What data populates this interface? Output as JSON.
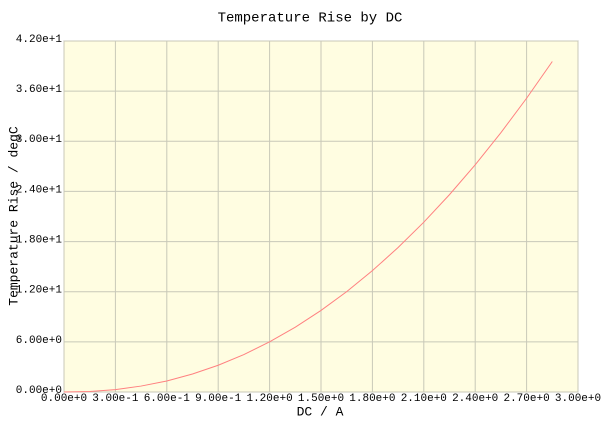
{
  "chart_data": {
    "type": "line",
    "title": "Temperature Rise by DC",
    "x_label": "DC / A",
    "y_label": "Temperature Rise / degC",
    "x": [
      0,
      0.15,
      0.3,
      0.45,
      0.6,
      0.75,
      0.9,
      1.05,
      1.2,
      1.35,
      1.5,
      1.65,
      1.8,
      1.95,
      2.1,
      2.25,
      2.4,
      2.55,
      2.7,
      2.85
    ],
    "series": [
      {
        "name": "Temperature Rise",
        "color": "#ff8080",
        "values": [
          0,
          0.06,
          0.29,
          0.71,
          1.32,
          2.15,
          3.2,
          4.48,
          6.0,
          7.76,
          9.76,
          12.01,
          14.52,
          17.29,
          20.32,
          23.62,
          27.19,
          31.03,
          35.15,
          39.55
        ]
      }
    ],
    "xlim": [
      0,
      3.0
    ],
    "ylim": [
      0,
      42
    ],
    "xticks": [
      {
        "value": 0,
        "label": "0.00e+0"
      },
      {
        "value": 0.3,
        "label": "3.00e-1"
      },
      {
        "value": 0.6,
        "label": "6.00e-1"
      },
      {
        "value": 0.9,
        "label": "9.00e-1"
      },
      {
        "value": 1.2,
        "label": "1.20e+0"
      },
      {
        "value": 1.5,
        "label": "1.50e+0"
      },
      {
        "value": 1.8,
        "label": "1.80e+0"
      },
      {
        "value": 2.1,
        "label": "2.10e+0"
      },
      {
        "value": 2.4,
        "label": "2.40e+0"
      },
      {
        "value": 2.7,
        "label": "2.70e+0"
      },
      {
        "value": 3.0,
        "label": "3.00e+0"
      }
    ],
    "yticks": [
      {
        "value": 0,
        "label": "0.00e+0"
      },
      {
        "value": 6,
        "label": "6.00e+0"
      },
      {
        "value": 12,
        "label": "1.20e+1"
      },
      {
        "value": 18,
        "label": "1.80e+1"
      },
      {
        "value": 24,
        "label": "2.40e+1"
      },
      {
        "value": 30,
        "label": "3.00e+1"
      },
      {
        "value": 36,
        "label": "3.60e+1"
      },
      {
        "value": 42,
        "label": "4.20e+1"
      }
    ],
    "grid": true
  }
}
